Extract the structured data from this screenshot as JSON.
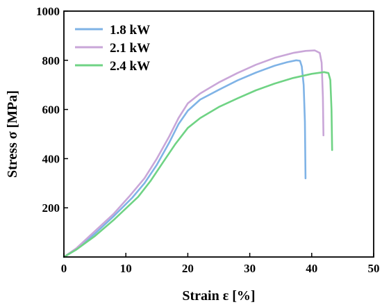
{
  "chart_data": {
    "type": "line",
    "xlabel": "Strain ε [%]",
    "ylabel": "Stress σ [MPa]",
    "xlim": [
      0,
      50
    ],
    "ylim": [
      0,
      1000
    ],
    "xticks": [
      0,
      10,
      20,
      30,
      40,
      50
    ],
    "yticks": [
      200,
      400,
      600,
      800,
      1000
    ],
    "x_tick_labels": [
      "0",
      "10",
      "20",
      "30",
      "40",
      "50"
    ],
    "y_tick_labels": [
      "200",
      "400",
      "600",
      "800",
      "1000"
    ],
    "grid": false,
    "legend_position": "top-left",
    "series": [
      {
        "name": "1.8 kW",
        "color": "#7fb3e6",
        "x": [
          0,
          2,
          5,
          8,
          11,
          13,
          15,
          17,
          18.5,
          20,
          22,
          25,
          28,
          31,
          34,
          36,
          37.5,
          38.1,
          38.4,
          38.7,
          38.9,
          39.0
        ],
        "y": [
          0,
          30,
          95,
          165,
          240,
          300,
          375,
          465,
          540,
          595,
          640,
          680,
          718,
          750,
          778,
          792,
          800,
          798,
          775,
          700,
          550,
          320
        ]
      },
      {
        "name": "2.1 kW",
        "color": "#c9a6d8",
        "x": [
          0,
          2,
          5,
          8,
          10.5,
          13,
          15,
          17,
          18.5,
          20,
          22,
          25,
          28,
          31,
          34,
          37,
          39,
          40.5,
          41.3,
          41.6,
          41.8,
          41.9
        ],
        "y": [
          0,
          35,
          105,
          175,
          245,
          320,
          400,
          490,
          565,
          625,
          665,
          710,
          748,
          782,
          810,
          830,
          838,
          840,
          830,
          790,
          650,
          495
        ]
      },
      {
        "name": "2.4 kW",
        "color": "#6fd384",
        "x": [
          0,
          2,
          5,
          8,
          12,
          14,
          16,
          18,
          20,
          22,
          25,
          28,
          31,
          34,
          37,
          40,
          42,
          42.7,
          43.0,
          43.2,
          43.3
        ],
        "y": [
          0,
          30,
          85,
          150,
          245,
          310,
          385,
          460,
          525,
          565,
          610,
          645,
          678,
          705,
          728,
          745,
          752,
          748,
          720,
          600,
          435
        ]
      }
    ]
  }
}
